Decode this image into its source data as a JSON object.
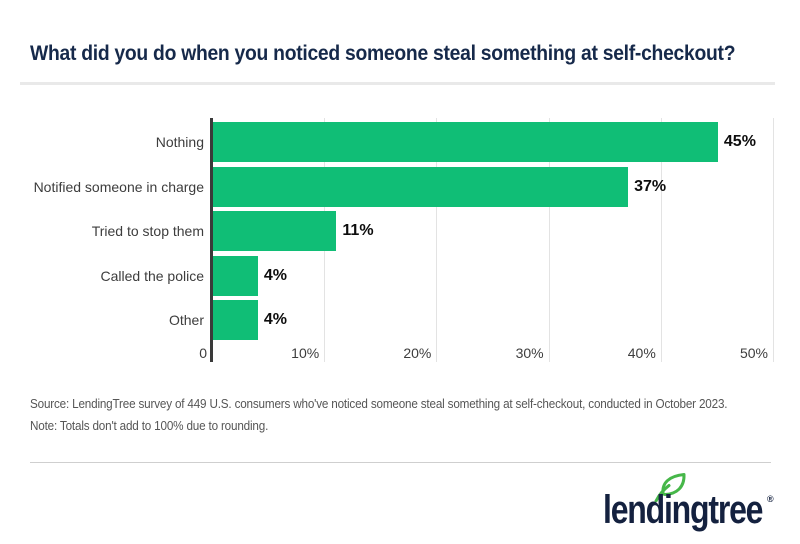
{
  "header": {
    "title": "What did you do when you noticed someone steal something at self-checkout?"
  },
  "chart_data": {
    "type": "bar",
    "orientation": "horizontal",
    "title": "What did you do when you noticed someone steal something at self-checkout?",
    "categories": [
      "Nothing",
      "Notified someone in charge",
      "Tried to stop them",
      "Called the police",
      "Other"
    ],
    "values": [
      45,
      37,
      11,
      4,
      4
    ],
    "value_labels": [
      "45%",
      "37%",
      "11%",
      "4%",
      "4%"
    ],
    "xlabel": "",
    "ylabel": "",
    "xlim": [
      0,
      50
    ],
    "xticks": [
      0,
      10,
      20,
      30,
      40,
      50
    ],
    "xtick_labels": [
      "0",
      "10%",
      "20%",
      "30%",
      "40%",
      "50%"
    ],
    "grid": true,
    "bar_color": "#10be76"
  },
  "footer": {
    "source_line": "Source: LendingTree survey of 449 U.S. consumers who've noticed someone steal something at self-checkout, conducted in October 2023.",
    "note_line": "Note: Totals don't add to 100% due to rounding.",
    "logo_text": "lendingtree",
    "logo_trademark": "®"
  },
  "colors": {
    "bar_green": "#10be76",
    "leaf_green": "#46b749",
    "title_navy": "#16294a",
    "logo_navy": "#14213f",
    "axis_dark": "#3a3a3a",
    "gridline_gray": "#e3e3e3",
    "divider_gray": "#e9e9e9",
    "source_gray": "#565656"
  }
}
